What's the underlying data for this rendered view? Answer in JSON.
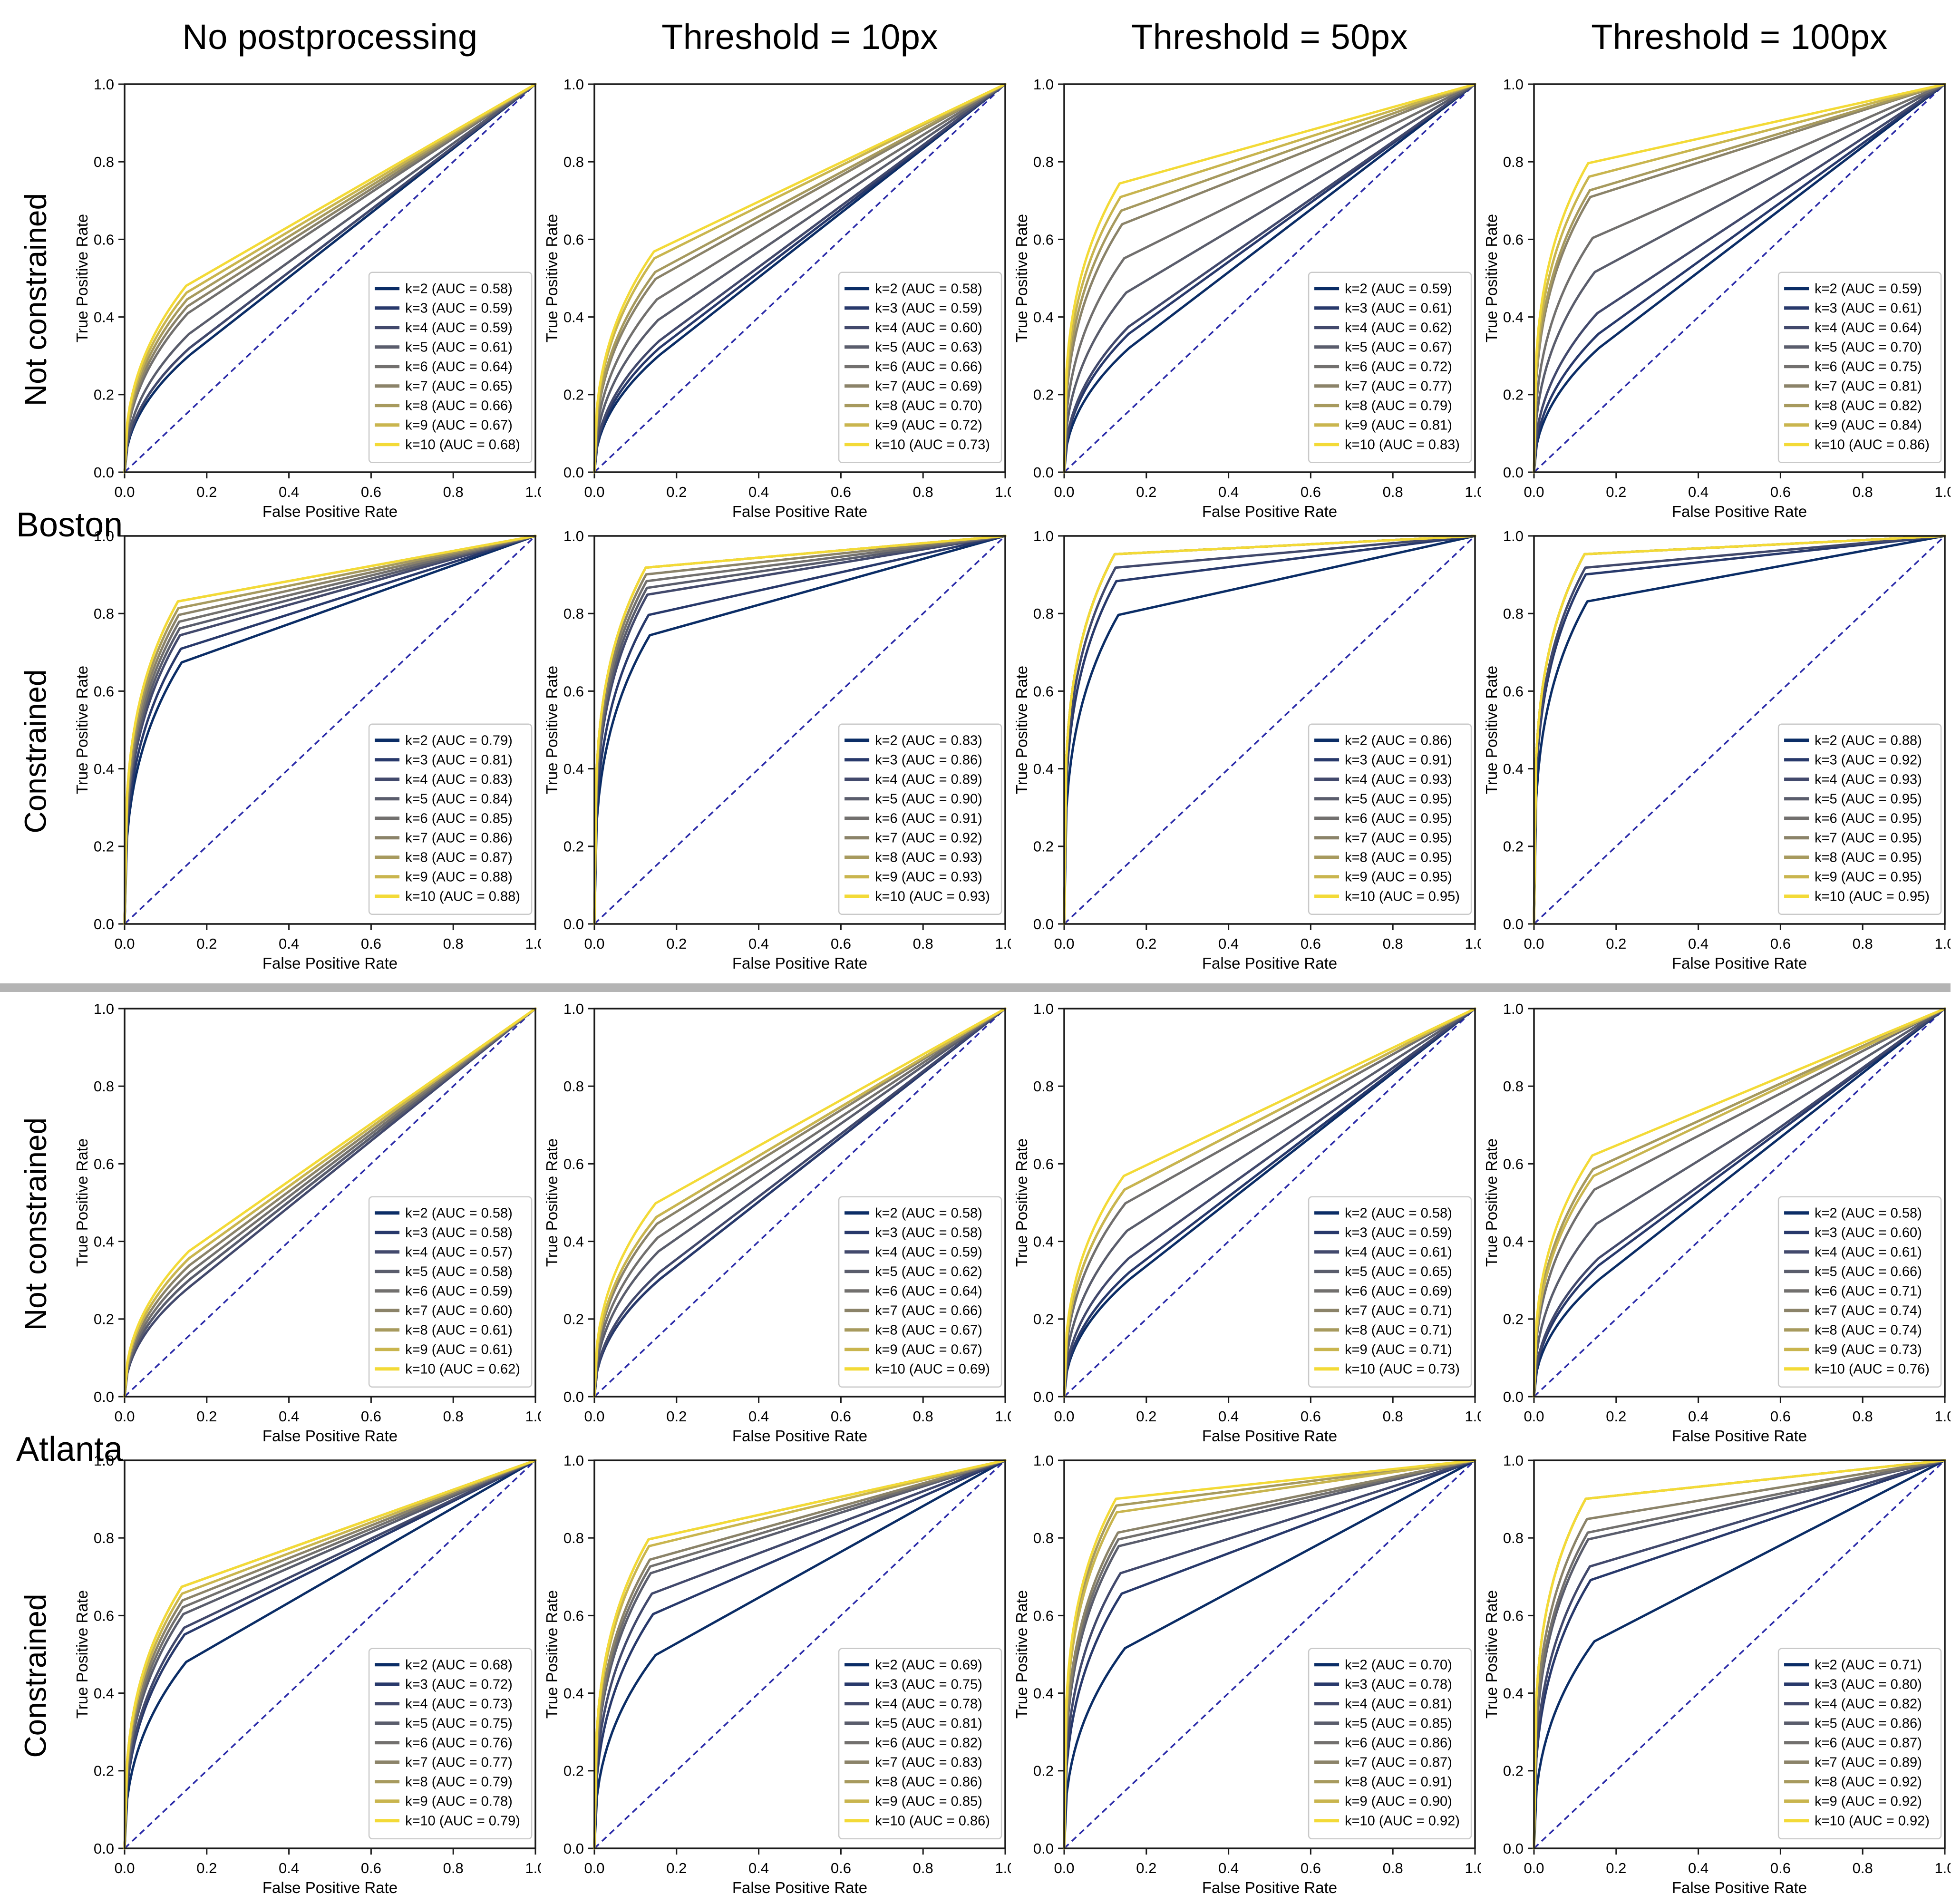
{
  "chart_data": {
    "type": "line",
    "description": "4x4 grid of ROC curves (True Positive Rate vs False Positive Rate) for Boston and Atlanta, unconstrained and constrained models, at four matching thresholds; one curve per k = 2..10 labelled with its AUC",
    "columns": [
      "No postprocessing",
      "Threshold = 10px",
      "Threshold = 50px",
      "Threshold = 100px"
    ],
    "city_labels": [
      "Boston",
      "Atlanta"
    ],
    "k_values": [
      2,
      3,
      4,
      5,
      6,
      7,
      8,
      9,
      10
    ],
    "xlabel": "False Positive Rate",
    "ylabel": "True Positive Rate",
    "xlim": [
      0.0,
      1.0
    ],
    "ylim": [
      0.0,
      1.0
    ],
    "tick_labels": [
      "0.0",
      "0.2",
      "0.4",
      "0.6",
      "0.8",
      "1.0"
    ],
    "grid": "off",
    "legend_position": "lower right",
    "diagonal_reference_line": {
      "from": [
        0,
        0
      ],
      "to": [
        1,
        1
      ],
      "style": "dashed"
    },
    "rows": [
      {
        "city": "Boston",
        "constraint": "Not constrained",
        "plots": [
          [
            "0.58",
            "0.59",
            "0.59",
            "0.61",
            "0.64",
            "0.65",
            "0.66",
            "0.67",
            "0.68"
          ],
          [
            "0.58",
            "0.59",
            "0.60",
            "0.63",
            "0.66",
            "0.69",
            "0.70",
            "0.72",
            "0.73"
          ],
          [
            "0.59",
            "0.61",
            "0.62",
            "0.67",
            "0.72",
            "0.77",
            "0.79",
            "0.81",
            "0.83"
          ],
          [
            "0.59",
            "0.61",
            "0.64",
            "0.70",
            "0.75",
            "0.81",
            "0.82",
            "0.84",
            "0.86"
          ]
        ]
      },
      {
        "city": "Boston",
        "constraint": "Constrained",
        "plots": [
          [
            "0.79",
            "0.81",
            "0.83",
            "0.84",
            "0.85",
            "0.86",
            "0.87",
            "0.88",
            "0.88"
          ],
          [
            "0.83",
            "0.86",
            "0.89",
            "0.90",
            "0.91",
            "0.92",
            "0.93",
            "0.93",
            "0.93"
          ],
          [
            "0.86",
            "0.91",
            "0.93",
            "0.95",
            "0.95",
            "0.95",
            "0.95",
            "0.95",
            "0.95"
          ],
          [
            "0.88",
            "0.92",
            "0.93",
            "0.95",
            "0.95",
            "0.95",
            "0.95",
            "0.95",
            "0.95"
          ]
        ]
      },
      {
        "city": "Atlanta",
        "constraint": "Not constrained",
        "plots": [
          [
            "0.58",
            "0.58",
            "0.57",
            "0.58",
            "0.59",
            "0.60",
            "0.61",
            "0.61",
            "0.62"
          ],
          [
            "0.58",
            "0.58",
            "0.59",
            "0.62",
            "0.64",
            "0.66",
            "0.67",
            "0.67",
            "0.69"
          ],
          [
            "0.58",
            "0.59",
            "0.61",
            "0.65",
            "0.69",
            "0.71",
            "0.71",
            "0.71",
            "0.73"
          ],
          [
            "0.58",
            "0.60",
            "0.61",
            "0.66",
            "0.71",
            "0.74",
            "0.74",
            "0.73",
            "0.76"
          ]
        ]
      },
      {
        "city": "Atlanta",
        "constraint": "Constrained",
        "plots": [
          [
            "0.68",
            "0.72",
            "0.73",
            "0.75",
            "0.76",
            "0.77",
            "0.79",
            "0.78",
            "0.79"
          ],
          [
            "0.69",
            "0.75",
            "0.78",
            "0.81",
            "0.82",
            "0.83",
            "0.86",
            "0.85",
            "0.86"
          ],
          [
            "0.70",
            "0.78",
            "0.81",
            "0.85",
            "0.86",
            "0.87",
            "0.91",
            "0.90",
            "0.92"
          ],
          [
            "0.71",
            "0.80",
            "0.82",
            "0.86",
            "0.87",
            "0.89",
            "0.92",
            "0.92",
            "0.92"
          ]
        ]
      }
    ],
    "legend_label_format": "k={k} (AUC = {auc})"
  },
  "style": {
    "k_colors": [
      "#0b2d66",
      "#28396b",
      "#42496c",
      "#5a5d6c",
      "#72706e",
      "#8b8369",
      "#a79a5e",
      "#c9b54e",
      "#f3da37"
    ],
    "diagonal_color": "#2a2aa8",
    "separator_color": "#b4b4b4",
    "frame_color": "#1a1a1a",
    "legend_border_color": "#c9c9c9",
    "text_color": "#000000"
  }
}
